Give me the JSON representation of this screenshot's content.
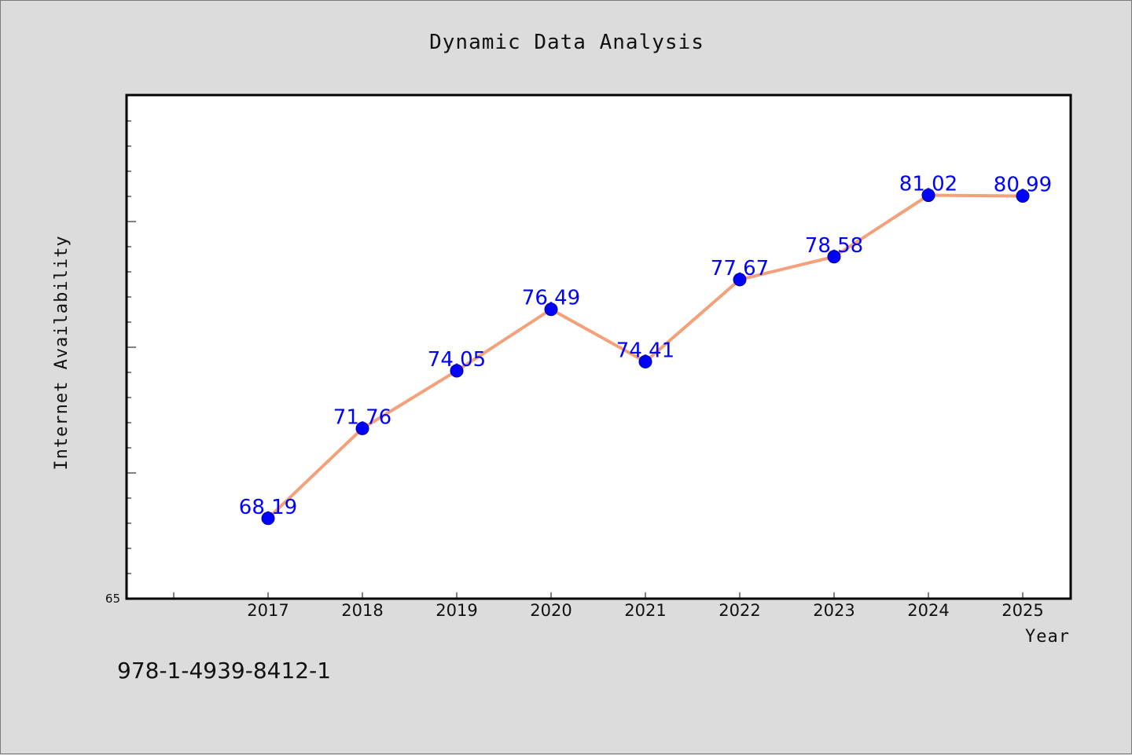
{
  "chart_data": {
    "type": "line",
    "title": "Dynamic Data Analysis",
    "xlabel": "Year",
    "ylabel": "Internet Availability",
    "categories": [
      "2017",
      "2018",
      "2019",
      "2020",
      "2021",
      "2022",
      "2023",
      "2024",
      "2025"
    ],
    "series": [
      {
        "values": [
          68.19,
          71.76,
          74.05,
          76.49,
          74.41,
          77.67,
          78.58,
          81.02,
          80.99
        ],
        "data_labels": [
          "68.19",
          "71.76",
          "74.05",
          "76.49",
          "74.41",
          "77.67",
          "78.58",
          "81.02",
          "80.99"
        ],
        "line_color": "#f4a07a",
        "marker_color": "#0000ff"
      }
    ],
    "ylim": [
      65,
      85
    ],
    "ytick_labels": [
      "65"
    ],
    "grid": false,
    "legend": "none",
    "label_color": "#0000ff"
  },
  "footer_text": "978-1-4939-8412-1",
  "colors": {
    "background": "#dcdcdc",
    "plot_background": "#ffffff",
    "axis": "#000000"
  }
}
